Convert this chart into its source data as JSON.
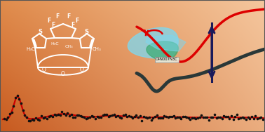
{
  "figsize": [
    3.78,
    1.88
  ],
  "dpi": 100,
  "red_curve_color": "#dd0000",
  "dark_curve_color": "#2a3838",
  "arrow_color": "#1a1a5a",
  "cyan_fill": "#7dd8f0",
  "teal_fill": "#3aaa70",
  "teal_fill2": "#5ab888",
  "label_text": "C4N007N3C",
  "label_bg": "#e8e8d8",
  "spectrum_red": "#cc0000",
  "spectrum_dots": "#111111",
  "struct_color": "white",
  "bg_colors": {
    "tl": [
      0.78,
      0.35,
      0.12
    ],
    "tr": [
      0.92,
      0.68,
      0.5
    ],
    "bl": [
      0.88,
      0.55,
      0.3
    ],
    "br": [
      0.96,
      0.78,
      0.62
    ]
  }
}
